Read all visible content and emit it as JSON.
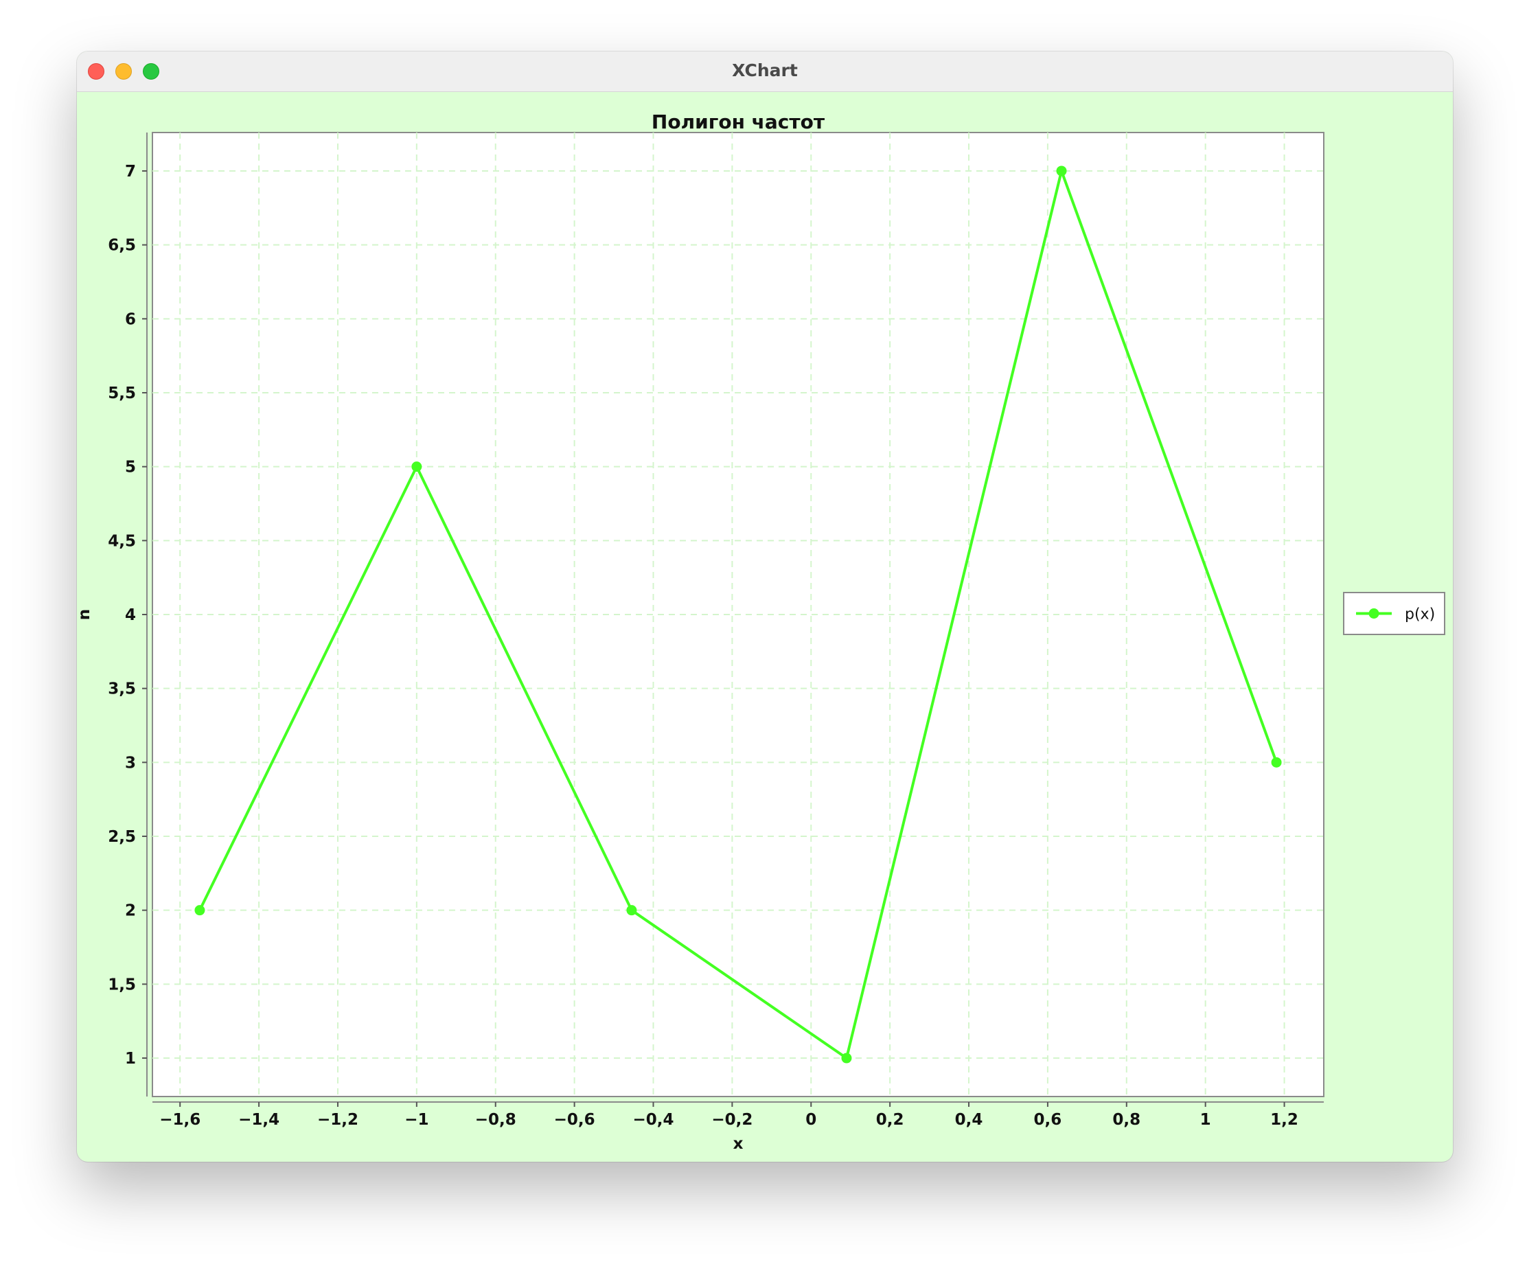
{
  "window": {
    "title": "XChart"
  },
  "colors": {
    "series": "#44ff22",
    "background": "#ddffd5",
    "plot": "#ffffff",
    "grid": "#d4f5cc"
  },
  "chart_data": {
    "type": "line",
    "title": "Полигон частот",
    "xlabel": "x",
    "ylabel": "n",
    "xlim": [
      -1.67,
      1.3
    ],
    "ylim": [
      0.74,
      7.26
    ],
    "x_ticks": [
      -1.6,
      -1.4,
      -1.2,
      -1,
      -0.8,
      -0.6,
      -0.4,
      -0.2,
      0,
      0.2,
      0.4,
      0.6,
      0.8,
      1,
      1.2
    ],
    "x_tick_labels": [
      "−1,6",
      "−1,4",
      "−1,2",
      "−1",
      "−0,8",
      "−0,6",
      "−0,4",
      "−0,2",
      "0",
      "0,2",
      "0,4",
      "0,6",
      "0,8",
      "1",
      "1,2"
    ],
    "y_ticks": [
      1,
      1.5,
      2,
      2.5,
      3,
      3.5,
      4,
      4.5,
      5,
      5.5,
      6,
      6.5,
      7
    ],
    "y_tick_labels": [
      "1",
      "1,5",
      "2",
      "2,5",
      "3",
      "3,5",
      "4",
      "4,5",
      "5",
      "5,5",
      "6",
      "6,5",
      "7"
    ],
    "grid": true,
    "legend": "right",
    "series": [
      {
        "name": "p(x)",
        "color": "#44ff22",
        "x": [
          -1.55,
          -1.0,
          -0.455,
          0.09,
          0.635,
          1.18
        ],
        "y": [
          2,
          5,
          2,
          1,
          7,
          3
        ]
      }
    ]
  }
}
